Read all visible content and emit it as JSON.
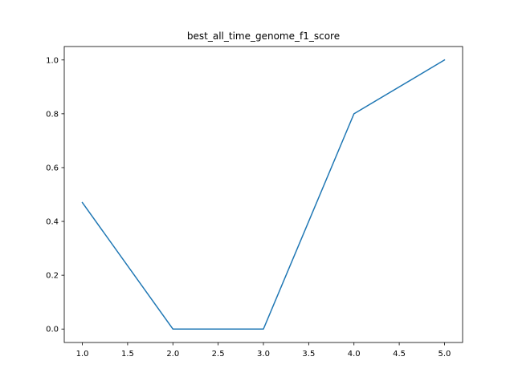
{
  "chart_data": {
    "type": "line",
    "title": "best_all_time_genome_f1_score",
    "xlabel": "",
    "ylabel": "",
    "x": [
      1.0,
      2.0,
      3.0,
      4.0,
      5.0
    ],
    "series": [
      {
        "values": [
          0.47,
          0.0,
          0.0,
          0.8,
          1.0
        ],
        "color": "#1f77b4"
      }
    ],
    "xlim": [
      0.8,
      5.2
    ],
    "ylim": [
      -0.05,
      1.05
    ],
    "xticks": [
      1.0,
      1.5,
      2.0,
      2.5,
      3.0,
      3.5,
      4.0,
      4.5,
      5.0
    ],
    "xtick_labels": [
      "1.0",
      "1.5",
      "2.0",
      "2.5",
      "3.0",
      "3.5",
      "4.0",
      "4.5",
      "5.0"
    ],
    "yticks": [
      0.0,
      0.2,
      0.4,
      0.6,
      0.8,
      1.0
    ],
    "ytick_labels": [
      "0.0",
      "0.2",
      "0.4",
      "0.6",
      "0.8",
      "1.0"
    ],
    "grid": false,
    "legend": "none"
  }
}
